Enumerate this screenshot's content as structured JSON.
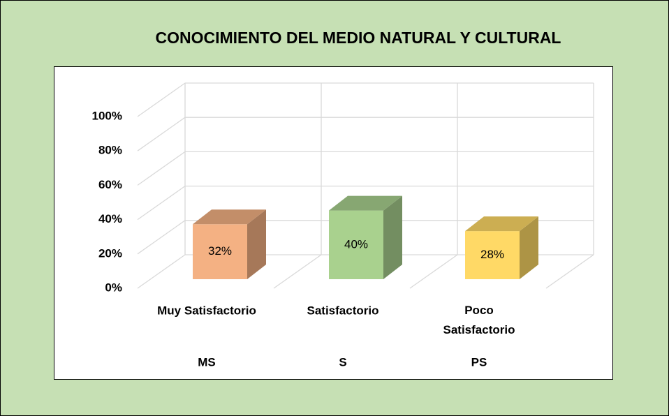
{
  "chart_data": {
    "type": "bar3d",
    "title": "CONOCIMIENTO DEL MEDIO NATURAL Y CULTURAL",
    "categories": [
      "Muy Satisfactorio",
      "Satisfactorio",
      "Poco Satisfactorio"
    ],
    "category_codes": [
      "MS",
      "S",
      "PS"
    ],
    "values": [
      32,
      40,
      28
    ],
    "value_labels": [
      "32%",
      "40%",
      "28%"
    ],
    "colors": [
      "#f4b183",
      "#a9d18e",
      "#ffd966"
    ],
    "ylim": [
      0,
      100
    ],
    "yticks": [
      {
        "value": 0,
        "label": "0%"
      },
      {
        "value": 20,
        "label": "20%"
      },
      {
        "value": 40,
        "label": "40%"
      },
      {
        "value": 60,
        "label": "60%"
      },
      {
        "value": 80,
        "label": "80%"
      },
      {
        "value": 100,
        "label": "100%"
      }
    ],
    "grid": true
  }
}
